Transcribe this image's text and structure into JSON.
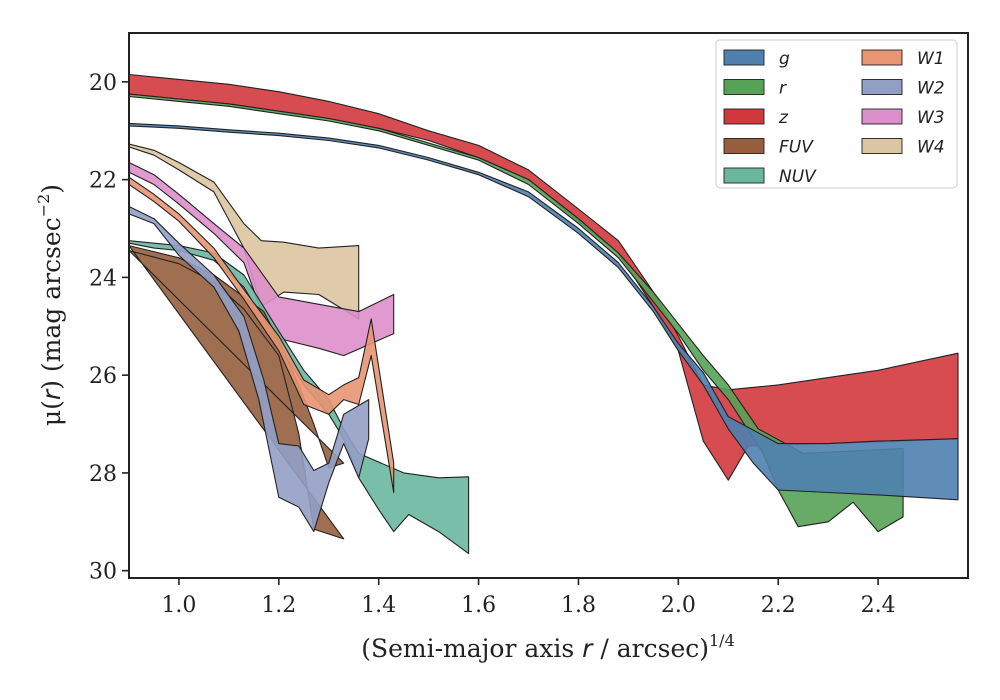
{
  "chart_data": {
    "type": "area",
    "xlabel": "(Semi-major axis r / arcsec)^1/4",
    "xlabel_parts": {
      "prefix": "(Semi-major axis ",
      "var": "r",
      "mid": " / arcsec)",
      "exp": "1/4"
    },
    "ylabel": "μ(r) (mag arcsec^−2)",
    "ylabel_parts": {
      "mu": "μ(",
      "var": "r",
      "mid": ") (mag arcsec",
      "exp": "−2",
      "end": ")"
    },
    "xlim": [
      0.9,
      2.58
    ],
    "ylim": [
      30.15,
      19.0
    ],
    "y_inverted": true,
    "x_ticks": [
      "1.0",
      "1.2",
      "1.4",
      "1.6",
      "1.8",
      "2.0",
      "2.2",
      "2.4"
    ],
    "y_ticks": [
      "20",
      "22",
      "24",
      "26",
      "28",
      "30"
    ],
    "grid": false,
    "legend": {
      "placement": "top-right",
      "columns": 2
    },
    "series": [
      {
        "name": "W4",
        "label": "W4",
        "color": "#dcc5a1",
        "upper": [
          [
            0.9,
            21.27
          ],
          [
            0.95,
            21.4
          ],
          [
            1.0,
            21.65
          ],
          [
            1.07,
            22.05
          ],
          [
            1.13,
            22.9
          ],
          [
            1.165,
            23.25
          ],
          [
            1.21,
            23.28
          ],
          [
            1.28,
            23.4
          ],
          [
            1.36,
            23.35
          ]
        ],
        "lower": [
          [
            0.9,
            21.33
          ],
          [
            0.95,
            21.5
          ],
          [
            1.0,
            21.8
          ],
          [
            1.07,
            22.25
          ],
          [
            1.13,
            23.4
          ],
          [
            1.165,
            24.6
          ],
          [
            1.21,
            24.3
          ],
          [
            1.28,
            24.35
          ],
          [
            1.36,
            24.85
          ]
        ]
      },
      {
        "name": "W3",
        "label": "W3",
        "color": "#dd8fcb",
        "upper": [
          [
            0.9,
            21.65
          ],
          [
            0.95,
            21.9
          ],
          [
            1.0,
            22.3
          ],
          [
            1.07,
            22.9
          ],
          [
            1.13,
            23.4
          ],
          [
            1.2,
            24.4
          ],
          [
            1.28,
            24.55
          ],
          [
            1.36,
            24.7
          ],
          [
            1.43,
            24.35
          ]
        ],
        "lower": [
          [
            0.9,
            21.85
          ],
          [
            0.95,
            22.1
          ],
          [
            1.0,
            22.5
          ],
          [
            1.07,
            23.1
          ],
          [
            1.13,
            23.7
          ],
          [
            1.16,
            24.55
          ],
          [
            1.2,
            25.25
          ],
          [
            1.28,
            25.45
          ],
          [
            1.33,
            25.6
          ],
          [
            1.43,
            25.15
          ]
        ]
      },
      {
        "name": "NUV",
        "label": "NUV",
        "color": "#6ab79e",
        "upper": [
          [
            0.9,
            23.25
          ],
          [
            0.95,
            23.3
          ],
          [
            1.0,
            23.35
          ],
          [
            1.07,
            23.5
          ],
          [
            1.13,
            23.95
          ],
          [
            1.2,
            25.1
          ],
          [
            1.25,
            25.9
          ],
          [
            1.3,
            26.5
          ],
          [
            1.33,
            27.1
          ],
          [
            1.36,
            27.6
          ],
          [
            1.45,
            28.0
          ],
          [
            1.52,
            28.1
          ],
          [
            1.58,
            28.08
          ]
        ],
        "lower": [
          [
            0.9,
            23.3
          ],
          [
            0.95,
            23.4
          ],
          [
            1.0,
            23.45
          ],
          [
            1.07,
            23.65
          ],
          [
            1.13,
            24.2
          ],
          [
            1.2,
            25.4
          ],
          [
            1.25,
            26.2
          ],
          [
            1.3,
            26.8
          ],
          [
            1.33,
            27.3
          ],
          [
            1.36,
            28.1
          ],
          [
            1.4,
            28.75
          ],
          [
            1.43,
            29.2
          ],
          [
            1.46,
            28.85
          ],
          [
            1.52,
            29.2
          ],
          [
            1.58,
            29.65
          ]
        ]
      },
      {
        "name": "FUV",
        "label": "FUV",
        "color": "#965e3d",
        "upper": [
          [
            0.9,
            23.35
          ],
          [
            1.0,
            23.6
          ],
          [
            1.07,
            23.95
          ],
          [
            1.13,
            24.4
          ],
          [
            1.17,
            24.7
          ],
          [
            1.2,
            25.3
          ],
          [
            1.24,
            26.2
          ],
          [
            1.27,
            27.0
          ],
          [
            1.3,
            27.9
          ],
          [
            1.33,
            27.8
          ]
        ],
        "lower": [
          [
            1.33,
            29.35
          ],
          [
            1.27,
            29.15
          ],
          [
            1.24,
            27.2
          ],
          [
            1.2,
            25.6
          ],
          [
            1.13,
            24.65
          ],
          [
            1.07,
            24.1
          ],
          [
            1.0,
            23.72
          ],
          [
            0.9,
            23.45
          ]
        ]
      },
      {
        "name": "W2",
        "label": "W2",
        "color": "#929fc4",
        "upper": [
          [
            0.9,
            22.55
          ],
          [
            0.95,
            22.8
          ],
          [
            1.0,
            23.3
          ],
          [
            1.07,
            23.95
          ],
          [
            1.13,
            24.8
          ],
          [
            1.17,
            26.1
          ],
          [
            1.2,
            27.4
          ],
          [
            1.24,
            27.45
          ],
          [
            1.27,
            27.95
          ],
          [
            1.3,
            27.8
          ],
          [
            1.33,
            26.8
          ],
          [
            1.38,
            26.5
          ]
        ],
        "lower": [
          [
            0.9,
            22.7
          ],
          [
            0.95,
            22.9
          ],
          [
            1.0,
            23.55
          ],
          [
            1.07,
            24.2
          ],
          [
            1.12,
            25.1
          ],
          [
            1.16,
            26.5
          ],
          [
            1.2,
            28.5
          ],
          [
            1.24,
            28.7
          ],
          [
            1.27,
            29.2
          ],
          [
            1.3,
            28.2
          ],
          [
            1.33,
            27.4
          ],
          [
            1.36,
            28.1
          ],
          [
            1.38,
            27.3
          ]
        ]
      },
      {
        "name": "W1",
        "label": "W1",
        "color": "#e79572",
        "upper": [
          [
            0.9,
            21.95
          ],
          [
            0.95,
            22.3
          ],
          [
            1.0,
            22.7
          ],
          [
            1.07,
            23.4
          ],
          [
            1.13,
            24.25
          ],
          [
            1.2,
            25.2
          ],
          [
            1.25,
            26.1
          ],
          [
            1.3,
            26.4
          ],
          [
            1.33,
            26.2
          ],
          [
            1.36,
            26.05
          ],
          [
            1.385,
            24.85
          ],
          [
            1.43,
            27.8
          ]
        ],
        "lower": [
          [
            0.9,
            22.1
          ],
          [
            0.95,
            22.45
          ],
          [
            1.0,
            22.85
          ],
          [
            1.07,
            23.6
          ],
          [
            1.13,
            24.45
          ],
          [
            1.2,
            25.5
          ],
          [
            1.25,
            26.6
          ],
          [
            1.3,
            26.8
          ],
          [
            1.33,
            26.5
          ],
          [
            1.36,
            26.6
          ],
          [
            1.385,
            25.6
          ],
          [
            1.43,
            28.4
          ]
        ]
      },
      {
        "name": "z",
        "label": "z",
        "color": "#d1383e",
        "upper": [
          [
            0.9,
            19.85
          ],
          [
            1.0,
            19.95
          ],
          [
            1.1,
            20.05
          ],
          [
            1.2,
            20.2
          ],
          [
            1.3,
            20.4
          ],
          [
            1.4,
            20.65
          ],
          [
            1.5,
            21.0
          ],
          [
            1.6,
            21.3
          ],
          [
            1.7,
            21.8
          ],
          [
            1.8,
            22.6
          ],
          [
            1.88,
            23.25
          ],
          [
            1.95,
            24.3
          ],
          [
            2.0,
            25.2
          ],
          [
            2.05,
            26.2
          ],
          [
            2.1,
            26.3
          ],
          [
            2.2,
            26.2
          ],
          [
            2.3,
            26.05
          ],
          [
            2.4,
            25.9
          ],
          [
            2.56,
            25.55
          ]
        ],
        "lower": [
          [
            0.9,
            20.25
          ],
          [
            1.0,
            20.35
          ],
          [
            1.1,
            20.45
          ],
          [
            1.2,
            20.6
          ],
          [
            1.3,
            20.75
          ],
          [
            1.4,
            20.95
          ],
          [
            1.5,
            21.2
          ],
          [
            1.6,
            21.55
          ],
          [
            1.7,
            22.0
          ],
          [
            1.8,
            22.85
          ],
          [
            1.88,
            23.5
          ],
          [
            1.95,
            24.6
          ],
          [
            2.0,
            25.5
          ],
          [
            2.05,
            27.35
          ],
          [
            2.1,
            28.15
          ],
          [
            2.14,
            27.45
          ],
          [
            2.3,
            27.4
          ],
          [
            2.45,
            27.35
          ],
          [
            2.56,
            27.3
          ]
        ]
      },
      {
        "name": "r",
        "label": "r",
        "color": "#58a257",
        "upper": [
          [
            0.9,
            20.25
          ],
          [
            1.0,
            20.35
          ],
          [
            1.1,
            20.45
          ],
          [
            1.2,
            20.6
          ],
          [
            1.3,
            20.75
          ],
          [
            1.4,
            20.95
          ],
          [
            1.5,
            21.25
          ],
          [
            1.6,
            21.55
          ],
          [
            1.7,
            22.0
          ],
          [
            1.8,
            22.8
          ],
          [
            1.88,
            23.5
          ],
          [
            1.95,
            24.3
          ],
          [
            2.0,
            24.95
          ],
          [
            2.05,
            25.6
          ],
          [
            2.1,
            26.2
          ],
          [
            2.16,
            27.1
          ],
          [
            2.25,
            27.6
          ],
          [
            2.35,
            27.55
          ],
          [
            2.45,
            27.5
          ]
        ],
        "lower": [
          [
            0.9,
            20.3
          ],
          [
            1.0,
            20.4
          ],
          [
            1.1,
            20.5
          ],
          [
            1.2,
            20.65
          ],
          [
            1.3,
            20.8
          ],
          [
            1.4,
            21.0
          ],
          [
            1.5,
            21.3
          ],
          [
            1.6,
            21.6
          ],
          [
            1.7,
            22.1
          ],
          [
            1.8,
            22.9
          ],
          [
            1.88,
            23.6
          ],
          [
            1.95,
            24.5
          ],
          [
            2.0,
            25.15
          ],
          [
            2.05,
            25.9
          ],
          [
            2.1,
            26.5
          ],
          [
            2.17,
            27.6
          ],
          [
            2.2,
            28.35
          ],
          [
            2.24,
            29.1
          ],
          [
            2.3,
            29.0
          ],
          [
            2.35,
            28.6
          ],
          [
            2.4,
            29.2
          ],
          [
            2.45,
            28.9
          ]
        ]
      },
      {
        "name": "g",
        "label": "g",
        "color": "#4f80b0",
        "upper": [
          [
            0.9,
            20.85
          ],
          [
            1.0,
            20.9
          ],
          [
            1.1,
            20.98
          ],
          [
            1.2,
            21.05
          ],
          [
            1.3,
            21.15
          ],
          [
            1.4,
            21.3
          ],
          [
            1.5,
            21.55
          ],
          [
            1.6,
            21.85
          ],
          [
            1.7,
            22.25
          ],
          [
            1.8,
            23.0
          ],
          [
            1.88,
            23.7
          ],
          [
            1.95,
            24.6
          ],
          [
            2.0,
            25.35
          ],
          [
            2.05,
            25.95
          ],
          [
            2.1,
            26.85
          ],
          [
            2.2,
            27.4
          ],
          [
            2.3,
            27.4
          ],
          [
            2.4,
            27.35
          ],
          [
            2.56,
            27.3
          ]
        ],
        "lower": [
          [
            0.9,
            20.9
          ],
          [
            1.0,
            20.95
          ],
          [
            1.1,
            21.03
          ],
          [
            1.2,
            21.1
          ],
          [
            1.3,
            21.2
          ],
          [
            1.4,
            21.35
          ],
          [
            1.5,
            21.6
          ],
          [
            1.6,
            21.9
          ],
          [
            1.7,
            22.35
          ],
          [
            1.8,
            23.1
          ],
          [
            1.88,
            23.8
          ],
          [
            1.95,
            24.7
          ],
          [
            2.0,
            25.5
          ],
          [
            2.05,
            26.2
          ],
          [
            2.1,
            27.1
          ],
          [
            2.15,
            27.8
          ],
          [
            2.2,
            28.35
          ],
          [
            2.3,
            28.4
          ],
          [
            2.4,
            28.45
          ],
          [
            2.56,
            28.55
          ]
        ]
      }
    ],
    "legend_entries": [
      {
        "label": "g",
        "color": "#4f80b0"
      },
      {
        "label": "r",
        "color": "#58a257"
      },
      {
        "label": "z",
        "color": "#d1383e"
      },
      {
        "label": "FUV",
        "color": "#965e3d"
      },
      {
        "label": "NUV",
        "color": "#6ab79e"
      },
      {
        "label": "W1",
        "color": "#e79572"
      },
      {
        "label": "W2",
        "color": "#929fc4"
      },
      {
        "label": "W3",
        "color": "#dd8fcb"
      },
      {
        "label": "W4",
        "color": "#dcc5a1"
      }
    ]
  }
}
